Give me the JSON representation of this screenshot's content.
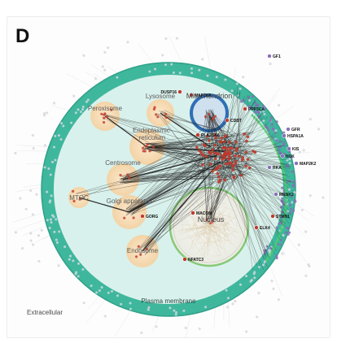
{
  "panel_label": "D",
  "compartments": {
    "peroxisome": "Peroxisome",
    "lysosome": "Lysosome",
    "mitochondrion": "Mitochondrion",
    "endoplasmic_reticulum": "Endoplasmic reticulum",
    "centrosome": "Centrosome",
    "mtoc": "MTOC",
    "golgi": "Golgi apparatus",
    "endosome": "Endosome",
    "nucleus": "Nucleus",
    "plasma_membrane": "Plasma membrane",
    "extracellular": "Extracellular"
  },
  "genes": [
    {
      "id": "GF1",
      "label": "GF1"
    },
    {
      "id": "DUSP16",
      "label": "DUSP16"
    },
    {
      "id": "MAP2K6",
      "label": "MAP2K6"
    },
    {
      "id": "PPP3CA",
      "label": "PPP3CA"
    },
    {
      "id": "CDBT",
      "label": "CDBT"
    },
    {
      "id": "GFR",
      "label": "GFR"
    },
    {
      "id": "HSPA1A",
      "label": "HSPA1A"
    },
    {
      "id": "KIS",
      "label": "KIS"
    },
    {
      "id": "MAP2K2",
      "label": "MAP2K2"
    },
    {
      "id": "RKA",
      "label": "RKA"
    },
    {
      "id": "PLA2G4A",
      "label": "PLA2G4A"
    },
    {
      "id": "NUK",
      "label": "NUK"
    },
    {
      "id": "STMN1",
      "label": "STMN1"
    },
    {
      "id": "ELK4",
      "label": "ELK4"
    },
    {
      "id": "MKNK2",
      "label": "MKNK2"
    },
    {
      "id": "MACOM",
      "label": "MACOM"
    },
    {
      "id": "NFATC3",
      "label": "NFATC3"
    },
    {
      "id": "GORG",
      "label": "GORG"
    }
  ],
  "colors": {
    "plasma_membrane_ring": "#3fb79d",
    "cytoplasm": "#d9f1ec",
    "organelle_fill": "#f6dfbf",
    "mitochondrion_ring": "#2f6fb5",
    "nucleus_ring": "#86c977",
    "edge": "#1a1a1a",
    "node_red": "#c0392b",
    "node_purple": "#8a6fb8",
    "node_grey": "#b8b8c4"
  }
}
